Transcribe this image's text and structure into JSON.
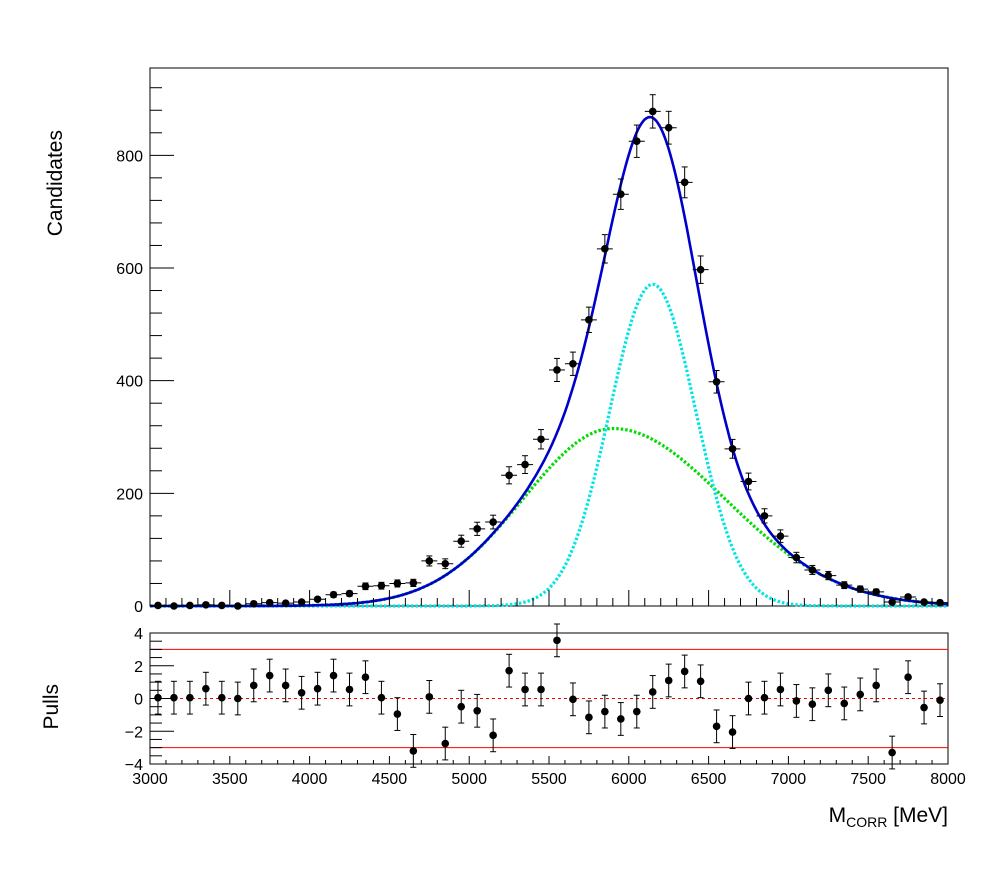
{
  "chart_data": [
    {
      "type": "scatter",
      "title": "",
      "ylabel": "Candidates",
      "xlim": [
        3000,
        8000
      ],
      "ylim": [
        0,
        955
      ],
      "yticks": [
        0,
        200,
        400,
        600,
        800
      ],
      "grid": false,
      "legend": "none",
      "bin_width": 100,
      "data": {
        "x": [
          3050,
          3150,
          3250,
          3350,
          3450,
          3550,
          3650,
          3750,
          3850,
          3950,
          4050,
          4150,
          4250,
          4350,
          4450,
          4550,
          4650,
          4750,
          4850,
          4950,
          5050,
          5150,
          5250,
          5350,
          5450,
          5550,
          5650,
          5750,
          5850,
          5950,
          6050,
          6150,
          6250,
          6350,
          6450,
          6550,
          6650,
          6750,
          6850,
          6950,
          7050,
          7150,
          7250,
          7350,
          7450,
          7550,
          7650,
          7750,
          7850,
          7950
        ],
        "y": [
          1,
          0,
          1,
          2,
          1,
          0,
          4,
          6,
          5,
          7,
          12,
          20,
          22,
          35,
          36,
          40,
          41,
          80,
          75,
          115,
          137,
          149,
          232,
          251,
          296,
          419,
          430,
          508,
          634,
          731,
          825,
          878,
          849,
          752,
          597,
          398,
          279,
          221,
          160,
          124,
          86,
          64,
          54,
          37,
          30,
          25,
          7,
          16,
          7,
          6
        ],
        "err": [
          1,
          1,
          1,
          1.4,
          1,
          1,
          2,
          2.4,
          2.2,
          2.6,
          3.5,
          4.5,
          4.7,
          5.9,
          6,
          6.3,
          6.4,
          8.9,
          8.7,
          10.7,
          11.7,
          12.2,
          15.2,
          15.8,
          17.2,
          20.5,
          20.7,
          22.5,
          25.2,
          27,
          28.7,
          29.6,
          29.1,
          27.4,
          24.4,
          20,
          16.7,
          14.9,
          12.6,
          11.1,
          9.3,
          8,
          7.3,
          6.1,
          5.5,
          5,
          2.6,
          4,
          2.6,
          2.4
        ]
      },
      "series": [
        {
          "name": "",
          "role": "total",
          "color": "#0000cc",
          "style": "solid"
        },
        {
          "name": "",
          "role": "narrow-component",
          "color": "#00e5e5",
          "style": "dotted"
        },
        {
          "name": "",
          "role": "wide-component",
          "color": "#00dd00",
          "style": "dotted"
        }
      ],
      "model": {
        "narrow": {
          "amplitude": 571,
          "mean": 6150,
          "sigma": 270
        },
        "wide": {
          "amplitude": 315,
          "mean": 5900,
          "sigma_left": 560,
          "sigma_right": 700
        }
      },
      "data_marker_color": "#000000"
    },
    {
      "type": "scatter",
      "title": "",
      "xlabel_main": "M",
      "xlabel_sub": "CORR",
      "xlabel_unit": " [MeV]",
      "ylabel": "Pulls",
      "xlim": [
        3000,
        8000
      ],
      "ylim": [
        -4,
        4
      ],
      "xticks": [
        3000,
        3500,
        4000,
        4500,
        5000,
        5500,
        6000,
        6500,
        7000,
        7500,
        8000
      ],
      "yticks": [
        -4,
        -2,
        0,
        2,
        4
      ],
      "reference_lines": [
        {
          "y": 3,
          "color": "#ff0000",
          "style": "solid"
        },
        {
          "y": -3,
          "color": "#ff0000",
          "style": "solid"
        },
        {
          "y": 0,
          "color": "#ff0000",
          "style": "dashed"
        }
      ],
      "data": {
        "x": [
          3050,
          3150,
          3250,
          3350,
          3450,
          3550,
          3650,
          3750,
          3850,
          3950,
          4050,
          4150,
          4250,
          4350,
          4450,
          4550,
          4650,
          4750,
          4850,
          4950,
          5050,
          5150,
          5250,
          5350,
          5450,
          5550,
          5650,
          5750,
          5850,
          5950,
          6050,
          6150,
          6250,
          6350,
          6450,
          6550,
          6650,
          6750,
          6850,
          6950,
          7050,
          7150,
          7250,
          7350,
          7450,
          7550,
          7650,
          7750,
          7850,
          7950
        ],
        "y": [
          0.05,
          0.05,
          0.05,
          0.6,
          0.05,
          0,
          0.8,
          1.4,
          0.8,
          0.35,
          0.6,
          1.4,
          0.55,
          1.3,
          0.05,
          -0.95,
          -3.2,
          0.1,
          -2.75,
          -0.5,
          -0.75,
          -2.25,
          1.7,
          0.55,
          0.55,
          3.55,
          -0.05,
          -1.15,
          -0.8,
          -1.25,
          -0.8,
          0.4,
          1.1,
          1.65,
          1.05,
          -1.7,
          -2.05,
          0,
          0.05,
          0.55,
          -0.15,
          -0.35,
          0.5,
          -0.3,
          0.25,
          0.8,
          -3.3,
          1.3,
          -0.55,
          -0.1
        ],
        "err": [
          1,
          1,
          1,
          1,
          1,
          1,
          1,
          1,
          1,
          1,
          1,
          1,
          1,
          1,
          1,
          1,
          1,
          1,
          1,
          1,
          1,
          1,
          1,
          1,
          1,
          1,
          1,
          1,
          1,
          1,
          1,
          1,
          1,
          1,
          1,
          1,
          1,
          1,
          1,
          1,
          1,
          1,
          1,
          1,
          1,
          1,
          1,
          1,
          1,
          1
        ]
      },
      "data_marker_color": "#000000"
    }
  ]
}
